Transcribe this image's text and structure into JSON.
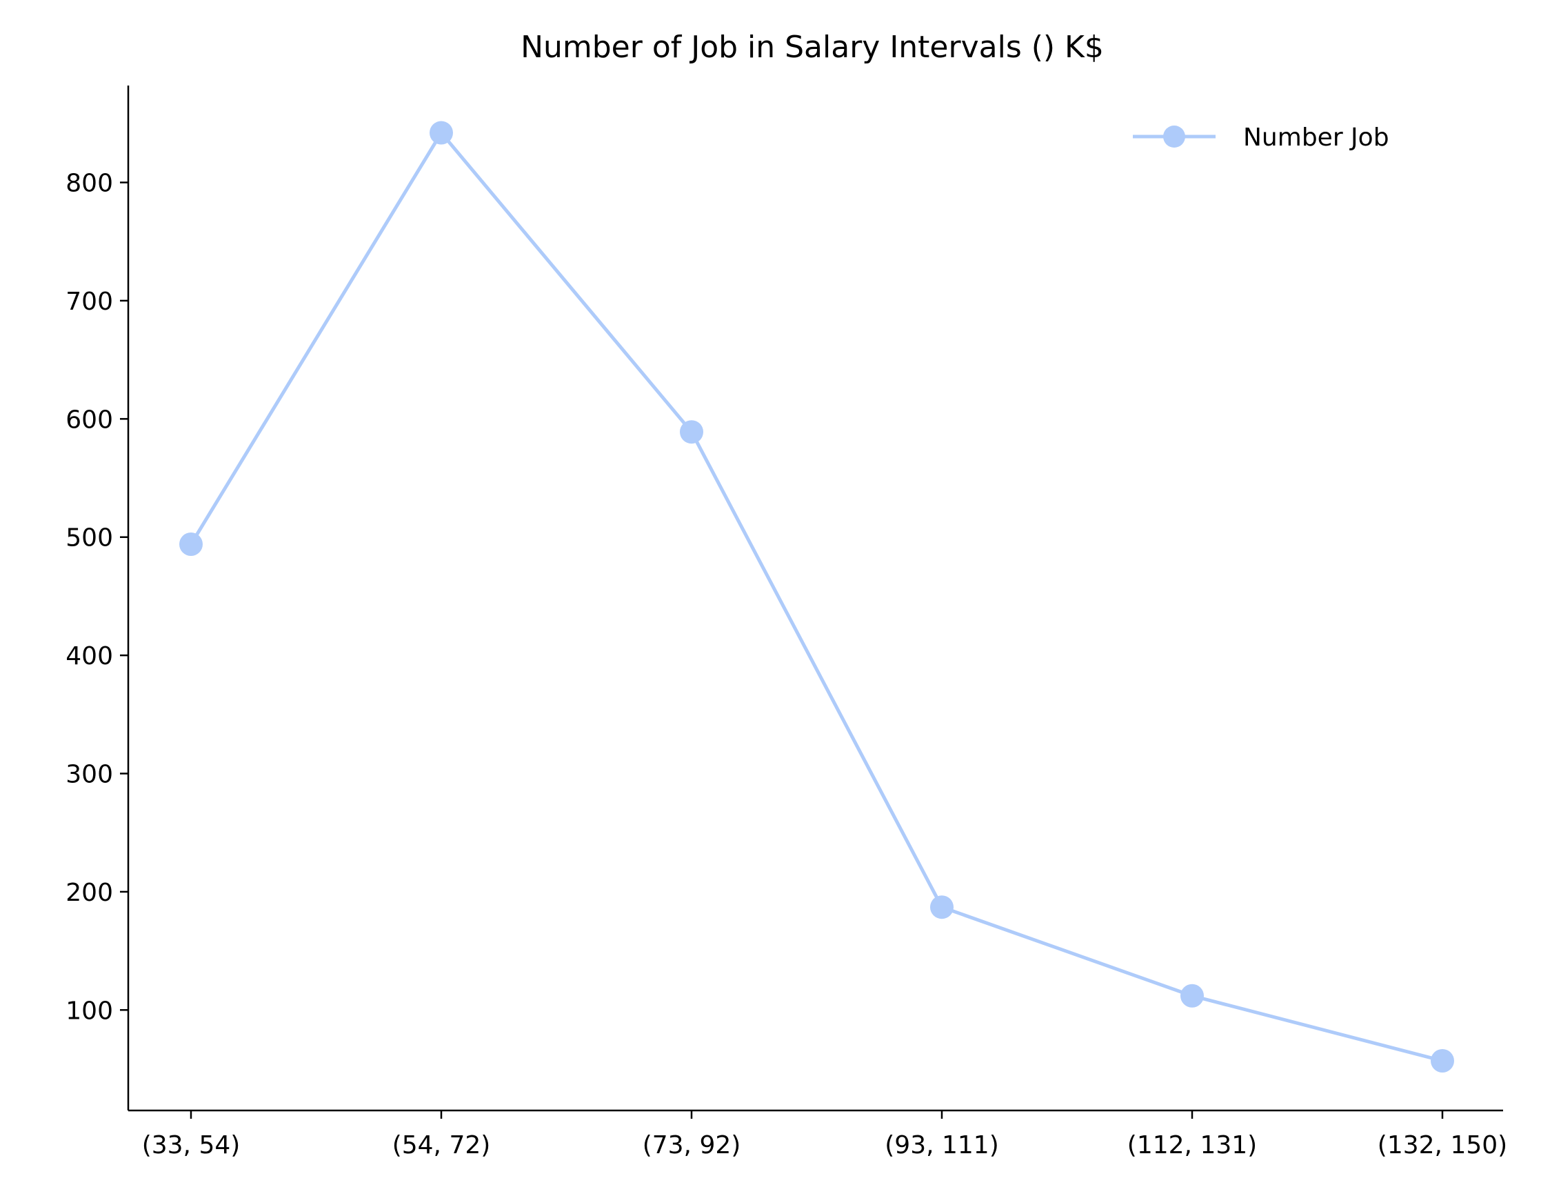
{
  "chart_data": {
    "type": "line",
    "title": "Number of Job in Salary Intervals () K$",
    "xlabel": "",
    "ylabel": "",
    "categories": [
      "(33, 54)",
      "(54, 72)",
      "(73, 92)",
      "(93, 111)",
      "(112, 131)",
      "(132, 150)"
    ],
    "series": [
      {
        "name": "Number Job",
        "values": [
          494,
          842,
          589,
          187,
          112,
          57
        ],
        "color": "#aecbfa",
        "marker": "circle"
      }
    ],
    "yticks": [
      100,
      200,
      300,
      400,
      500,
      600,
      700,
      800
    ],
    "ylim": [
      15,
      882
    ],
    "grid": false,
    "legend": "top-right"
  }
}
